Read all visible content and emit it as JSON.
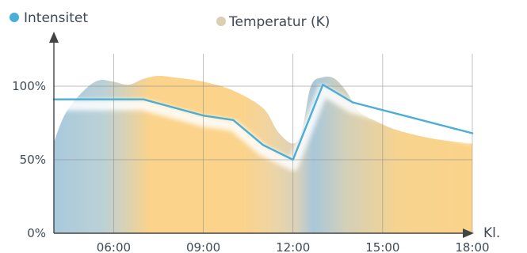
{
  "chart_data": {
    "type": "line",
    "title": "",
    "xlabel": "Kl.",
    "ylabel": "",
    "x_tick_labels": [
      "06:00",
      "09:00",
      "12:00",
      "15:00",
      "18:00"
    ],
    "y_tick_labels": [
      "0%",
      "50%",
      "100%"
    ],
    "x_ticks_hours": [
      6,
      9,
      12,
      15,
      18
    ],
    "y_ticks_percent": [
      0,
      50,
      100
    ],
    "xlim_hours": [
      4.0,
      18.0
    ],
    "ylim_percent": [
      0,
      125
    ],
    "grid": true,
    "legend_position": "top-left",
    "series": [
      {
        "name": "Intensitet",
        "kind": "line",
        "color": "#4aaed6",
        "x_hours": [
          4.0,
          7.0,
          9.0,
          10.0,
          11.0,
          12.0,
          13.0,
          14.0,
          18.0
        ],
        "y_percent": [
          91,
          91,
          80,
          77,
          60,
          50,
          101,
          89,
          68
        ]
      },
      {
        "name": "Temperatur (K)",
        "kind": "area",
        "color_warm": "#fbd38a",
        "color_cold": "#a6c8dc",
        "x_hours": [
          4.0,
          4.4,
          5.0,
          5.5,
          6.0,
          6.5,
          7.0,
          7.5,
          8.0,
          9.0,
          10.0,
          11.0,
          11.5,
          12.0,
          12.3,
          12.6,
          13.0,
          13.4,
          13.8,
          14.2,
          14.8,
          15.5,
          16.5,
          17.5,
          18.0
        ],
        "y_percent": [
          62,
          82,
          97,
          104,
          103,
          101,
          105,
          107,
          106,
          103,
          97,
          85,
          69,
          61,
          70,
          100,
          106,
          105,
          96,
          83,
          76,
          70,
          65,
          62,
          61
        ]
      }
    ]
  }
}
